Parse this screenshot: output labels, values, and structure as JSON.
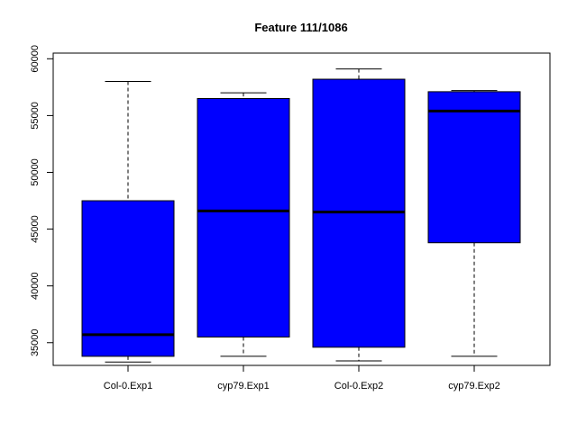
{
  "chart_data": {
    "type": "box",
    "title": "Feature  111/1086",
    "xlabel": "",
    "ylabel": "",
    "ylim": [
      33000,
      60500
    ],
    "yticks": [
      35000,
      40000,
      45000,
      50000,
      55000,
      60000
    ],
    "categories": [
      "Col-0.Exp1",
      "cyp79.Exp1",
      "Col-0.Exp2",
      "cyp79.Exp2"
    ],
    "boxes": [
      {
        "whisker_low": 33300,
        "q1": 33800,
        "median": 35700,
        "q3": 47500,
        "whisker_high": 58000
      },
      {
        "whisker_low": 33800,
        "q1": 35500,
        "median": 46600,
        "q3": 56500,
        "whisker_high": 57000
      },
      {
        "whisker_low": 33400,
        "q1": 34600,
        "median": 46500,
        "q3": 58200,
        "whisker_high": 59100
      },
      {
        "whisker_low": 33800,
        "q1": 43800,
        "median": 55400,
        "q3": 57100,
        "whisker_high": 57200
      }
    ],
    "box_color": "#0000ff",
    "grid": false,
    "legend": "none"
  }
}
